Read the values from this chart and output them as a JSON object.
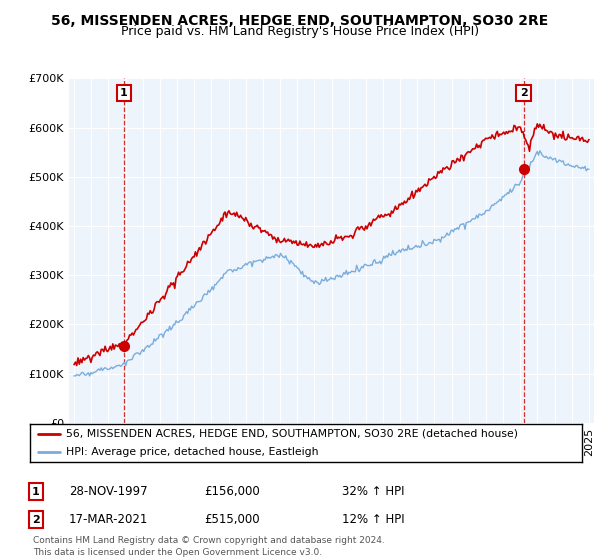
{
  "title": "56, MISSENDEN ACRES, HEDGE END, SOUTHAMPTON, SO30 2RE",
  "subtitle": "Price paid vs. HM Land Registry's House Price Index (HPI)",
  "legend_line1": "56, MISSENDEN ACRES, HEDGE END, SOUTHAMPTON, SO30 2RE (detached house)",
  "legend_line2": "HPI: Average price, detached house, Eastleigh",
  "point1_date": "28-NOV-1997",
  "point1_price": "£156,000",
  "point1_hpi": "32% ↑ HPI",
  "point2_date": "17-MAR-2021",
  "point2_price": "£515,000",
  "point2_hpi": "12% ↑ HPI",
  "footer": "Contains HM Land Registry data © Crown copyright and database right 2024.\nThis data is licensed under the Open Government Licence v3.0.",
  "red_color": "#cc0000",
  "blue_color": "#7aaddc",
  "ylim": [
    0,
    700000
  ],
  "xlim_start": 1994.7,
  "xlim_end": 2025.3,
  "point1_x": 1997.9,
  "point1_y": 156000,
  "point2_x": 2021.2,
  "point2_y": 515000,
  "chart_bg": "#eef4fb"
}
